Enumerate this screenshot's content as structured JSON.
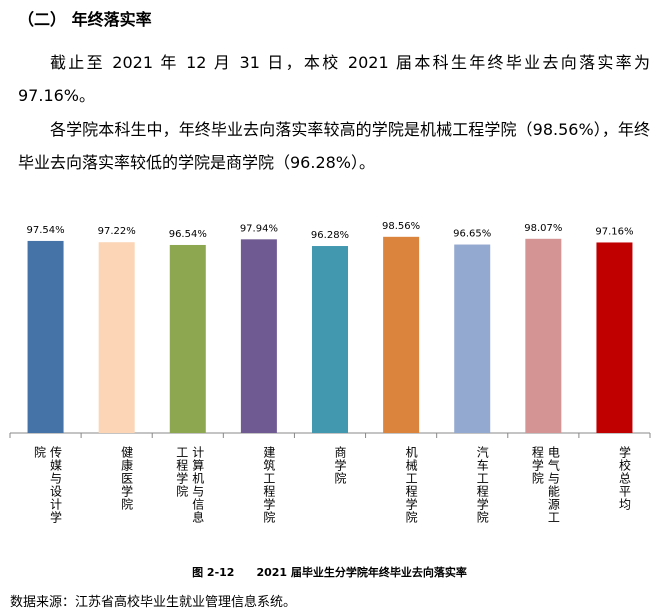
{
  "heading": "（二） 年终落实率",
  "paragraphs": [
    "截止至 2021 年 12 月 31 日，本校 2021 届本科生年终毕业去向落实率为97.16%。",
    "各学院本科生中，年终毕业去向落实率较高的学院是机械工程学院（98.56%），年终毕业去向落实率较低的学院是商学院（96.28%）。"
  ],
  "chart_data": {
    "type": "bar",
    "categories": [
      "传媒与设计学院",
      "健康医学院",
      "计算机与信息工程学院",
      "建筑工程学院",
      "商学院",
      "机械工程学院",
      "汽车工程学院",
      "电气与能源工程学院",
      "学校总平均"
    ],
    "values": [
      97.54,
      97.22,
      96.54,
      97.94,
      96.28,
      98.56,
      96.65,
      98.07,
      97.16
    ],
    "value_labels": [
      "97.54%",
      "97.22%",
      "96.54%",
      "97.94%",
      "96.28%",
      "98.56%",
      "96.65%",
      "98.07%",
      "97.16%"
    ],
    "colors": [
      "#4572a7",
      "#fbd5b5",
      "#8da650",
      "#705a92",
      "#4198af",
      "#db843d",
      "#93a9cf",
      "#d49494",
      "#c00000"
    ],
    "ylim": [
      50,
      100
    ]
  },
  "caption": "图 2-12　　2021 届毕业生分学院年终毕业去向落实率",
  "source": "数据来源：江苏省高校毕业生就业管理信息系统。"
}
